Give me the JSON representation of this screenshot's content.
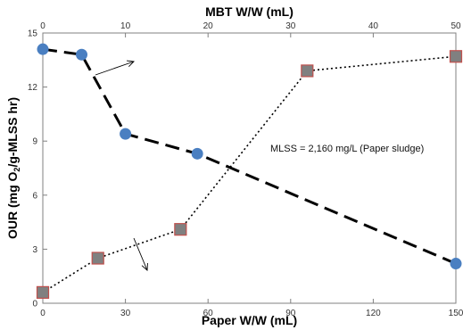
{
  "chart_data": {
    "type": "scatter",
    "title": "",
    "ylabel_parts": [
      "OUR (mg O",
      "2",
      "/g-MLSS hr)"
    ],
    "xlabel_bottom": "Paper W/W (mL)",
    "xlabel_top": "MBT W/W (mL)",
    "x_bottom_range": [
      0,
      150
    ],
    "x_bottom_ticks": [
      "0",
      "30",
      "60",
      "90",
      "120",
      "150"
    ],
    "x_top_range": [
      0,
      50
    ],
    "x_top_ticks": [
      "0",
      "10",
      "20",
      "30",
      "40",
      "50"
    ],
    "y_range": [
      0,
      15
    ],
    "y_ticks": [
      "0",
      "3",
      "6",
      "9",
      "12",
      "15"
    ],
    "grid": false,
    "annotation": "MLSS = 2,160 mg/L (Paper sludge)",
    "series": [
      {
        "axis": "top",
        "marker": "circle",
        "line": "dashed",
        "color": "#4a7fc1",
        "x": [
          0,
          4.7,
          10,
          18.7,
          50
        ],
        "y": [
          14.1,
          13.8,
          9.4,
          8.3,
          2.2
        ]
      },
      {
        "axis": "bottom",
        "marker": "square",
        "line": "dotted",
        "color": "#808080",
        "edge_color": "#c0504d",
        "x": [
          0,
          20,
          50,
          96,
          150
        ],
        "y": [
          0.6,
          2.5,
          4.1,
          12.9,
          13.7
        ]
      }
    ]
  }
}
